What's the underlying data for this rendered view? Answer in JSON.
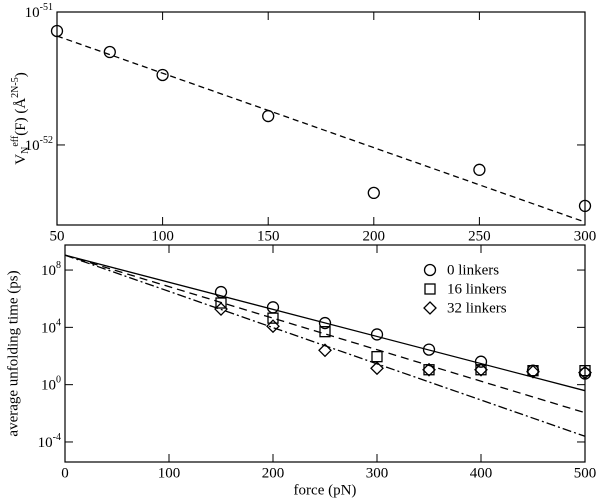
{
  "chart_data": [
    {
      "type": "scatter",
      "ylabel": "V_{N}^{eff}(F) (Å^{2N-5})",
      "xlim": [
        50,
        300
      ],
      "xticks": [
        50,
        100,
        150,
        200,
        250,
        300
      ],
      "log_y": true,
      "ylim": [
        2.5e-53,
        1e-51
      ],
      "yticks": [
        {
          "value": 1e-51,
          "label": "10^{-51}"
        },
        {
          "value": 1e-52,
          "label": "10^{-52}"
        }
      ],
      "series": [
        {
          "marker": "circle",
          "color": "#000000",
          "x": [
            50,
            75,
            100,
            150,
            200,
            250,
            300
          ],
          "values": [
            7.2e-52,
            5e-52,
            3.36e-52,
            1.65e-52,
            4.36e-53,
            6.5e-53,
            3.48e-53
          ]
        }
      ],
      "fits": [
        {
          "dash": "6,4",
          "color": "#000000",
          "x": [
            50,
            300
          ],
          "values": [
            6.6e-52,
            2.63e-53
          ]
        }
      ]
    },
    {
      "type": "scatter",
      "xlabel": "force (pN)",
      "ylabel": "average unfolding time (ps)",
      "xlim": [
        0,
        500
      ],
      "xticks": [
        0,
        100,
        200,
        300,
        400,
        500
      ],
      "log_y": true,
      "ylim": [
        4e-06,
        5600000000.0
      ],
      "yticks": [
        {
          "value": 0.0001,
          "label": "10^{-4}"
        },
        {
          "value": 1,
          "label": "10^{0}"
        },
        {
          "value": 10000.0,
          "label": "10^{4}"
        },
        {
          "value": 100000000.0,
          "label": "10^{8}"
        }
      ],
      "legend": "upper right",
      "series": [
        {
          "name": "0 linkers",
          "marker": "circle",
          "color": "#000000",
          "x": [
            150,
            200,
            250,
            300,
            350,
            400,
            450,
            500
          ],
          "values": [
            2900000.0,
            250000.0,
            20000.0,
            3200.0,
            280,
            40,
            9.5,
            6
          ]
        },
        {
          "name": "16 linkers",
          "marker": "square",
          "color": "#000000",
          "x": [
            150,
            200,
            250,
            300,
            350,
            400,
            450,
            500
          ],
          "values": [
            500000.0,
            44000.0,
            5000.0,
            90,
            11,
            11,
            9.5,
            9.5
          ]
        },
        {
          "name": "32 linkers",
          "marker": "diamond",
          "color": "#000000",
          "x": [
            150,
            200,
            250,
            300,
            350,
            400,
            450,
            500
          ],
          "values": [
            190000.0,
            12000.0,
            250,
            14,
            11,
            11,
            8,
            7
          ]
        }
      ],
      "fits": [
        {
          "dash": "none",
          "color": "#000000",
          "x": [
            0,
            500
          ],
          "values": [
            1100000000.0,
            0.38
          ]
        },
        {
          "dash": "8,5",
          "color": "#000000",
          "x": [
            0,
            500
          ],
          "values": [
            1100000000.0,
            0.011
          ]
        },
        {
          "dash": "9,3,2,3",
          "color": "#000000",
          "x": [
            0,
            500
          ],
          "values": [
            1100000000.0,
            0.00025
          ]
        }
      ]
    }
  ]
}
